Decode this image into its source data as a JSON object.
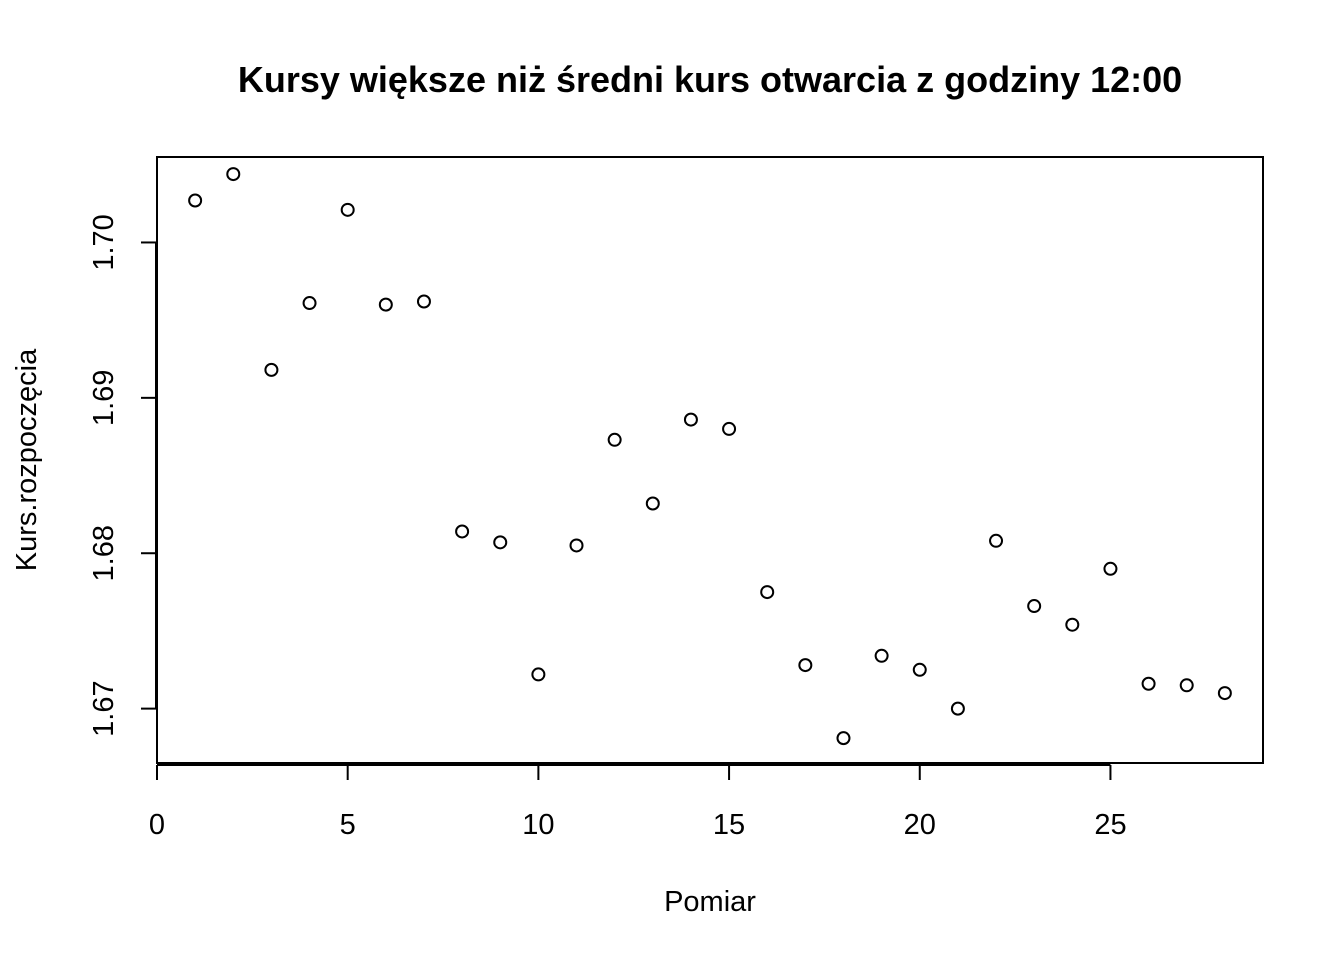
{
  "chart_data": {
    "type": "scatter",
    "title": "Kursy większe niż średni kurs otwarcia z godziny 12:00",
    "xlabel": "Pomiar",
    "ylabel": "Kurs.rozpoczęcia",
    "xlim": [
      0,
      29
    ],
    "ylim": [
      1.6665,
      1.7055
    ],
    "xticks": [
      0,
      5,
      10,
      15,
      20,
      25
    ],
    "xtick_labels": [
      "0",
      "5",
      "10",
      "15",
      "20",
      "25"
    ],
    "yticks": [
      1.67,
      1.68,
      1.69,
      1.7
    ],
    "ytick_labels": [
      "1.67",
      "1.68",
      "1.69",
      "1.70"
    ],
    "grid": false,
    "marker": "open-circle",
    "x": [
      1,
      2,
      3,
      4,
      5,
      6,
      7,
      8,
      9,
      10,
      11,
      12,
      13,
      14,
      15,
      16,
      17,
      18,
      19,
      20,
      21,
      22,
      23,
      24,
      25,
      26,
      27,
      28
    ],
    "y": [
      1.7027,
      1.7044,
      1.6918,
      1.6961,
      1.7021,
      1.696,
      1.6962,
      1.6814,
      1.6807,
      1.6722,
      1.6805,
      1.6873,
      1.6832,
      1.6886,
      1.688,
      1.6775,
      1.6728,
      1.6681,
      1.6734,
      1.6725,
      1.67,
      1.6808,
      1.6766,
      1.6754,
      1.679,
      1.6716,
      1.6715,
      1.671
    ]
  }
}
